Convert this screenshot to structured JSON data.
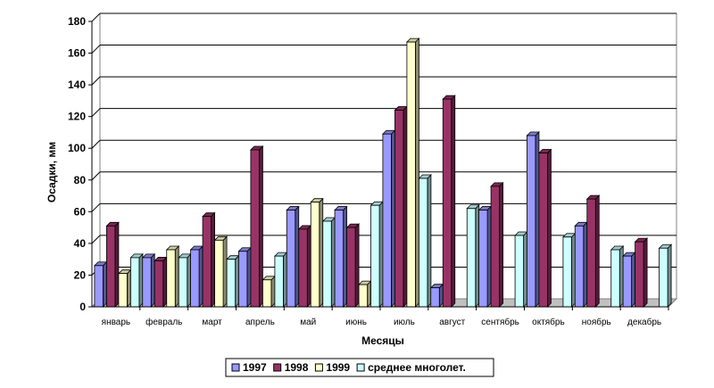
{
  "chart_data": {
    "type": "bar",
    "title": "",
    "xlabel": "Месяцы",
    "ylabel": "Осадки, мм",
    "ylim": [
      0,
      180
    ],
    "yticks": [
      0,
      20,
      40,
      60,
      80,
      100,
      120,
      140,
      160,
      180
    ],
    "grid": true,
    "legend_position": "bottom",
    "categories": [
      "январь",
      "февраль",
      "март",
      "апрель",
      "май",
      "июнь",
      "июль",
      "август",
      "сентябрь",
      "октябрь",
      "ноябрь",
      "декабрь"
    ],
    "series": [
      {
        "name": "1997",
        "color": "#9999ff",
        "values": [
          26,
          31,
          36,
          35,
          61,
          61,
          109,
          12,
          61,
          108,
          51,
          32
        ]
      },
      {
        "name": "1998",
        "color": "#993366",
        "values": [
          51,
          29,
          57,
          99,
          49,
          50,
          124,
          131,
          76,
          97,
          68,
          41
        ]
      },
      {
        "name": "1999",
        "color": "#ffffcc",
        "values": [
          21,
          36,
          42,
          17,
          66,
          14,
          167,
          null,
          null,
          null,
          null,
          null
        ]
      },
      {
        "name": "среднее многолет.",
        "color": "#ccffff",
        "values": [
          31,
          31,
          30,
          32,
          54,
          64,
          81,
          62,
          45,
          44,
          36,
          37
        ]
      }
    ]
  }
}
